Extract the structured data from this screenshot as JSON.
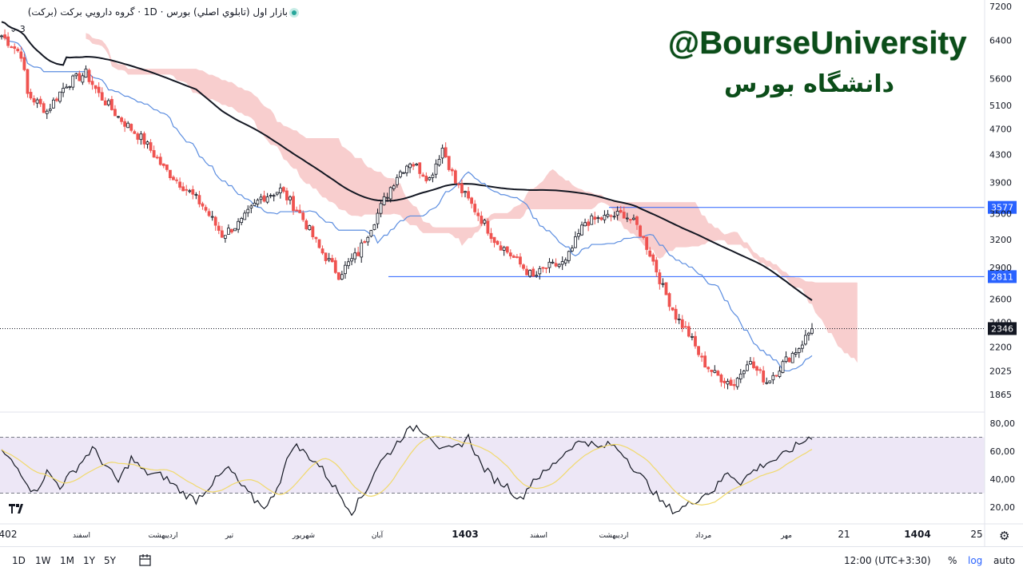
{
  "header": {
    "title": "بازار اول (تابلوي اصلي) بورس · 1D · گروه دارويي بركت (بركت)",
    "legend_toggle": "⌄ 3"
  },
  "watermark": {
    "handle": "@BourseUniversity",
    "persian": "دانشگاه بورس"
  },
  "colors": {
    "candle_up": "#131722",
    "candle_down": "#ef5350",
    "cloud_bear": "#f7c5c6",
    "cloud_bull": "#d9f2ea",
    "kijun": "#5b8de0",
    "ma_long": "#131722",
    "hline": "#2962ff",
    "rsi_line": "#131722",
    "rsi_ma": "#f1d96b",
    "rsi_band": "#ede7f6",
    "accent": "#2962ff"
  },
  "chart_data": [
    {
      "type": "candlestick",
      "title": "",
      "y_scale": "log",
      "ylim": [
        1750,
        7200
      ],
      "price_axis_labels": [
        "7200",
        "6400",
        "5600",
        "5100",
        "4700",
        "4300",
        "3900",
        "3500",
        "3200",
        "2900",
        "2600",
        "2400",
        "2200",
        "2025",
        "1865"
      ],
      "price_axis_values": [
        7200,
        6400,
        5600,
        5100,
        4700,
        4300,
        3900,
        3500,
        3200,
        2900,
        2600,
        2400,
        2200,
        2025,
        1865
      ],
      "time_axis_labels": [
        "402",
        "اسفند",
        "ارديبهشت",
        "تير",
        "شهريور",
        "آبان",
        "1403",
        "اسفند",
        "ارديبهشت",
        "مرداد",
        "مهر",
        "21",
        "1404",
        "25"
      ],
      "close_anchors": [
        [
          0,
          6500
        ],
        [
          6,
          6100
        ],
        [
          8,
          5300
        ],
        [
          14,
          5000
        ],
        [
          20,
          5500
        ],
        [
          26,
          5700
        ],
        [
          30,
          5300
        ],
        [
          36,
          4900
        ],
        [
          44,
          4500
        ],
        [
          50,
          4100
        ],
        [
          56,
          3850
        ],
        [
          62,
          3600
        ],
        [
          68,
          3250
        ],
        [
          74,
          3400
        ],
        [
          80,
          3700
        ],
        [
          86,
          3800
        ],
        [
          92,
          3500
        ],
        [
          98,
          3100
        ],
        [
          104,
          2830
        ],
        [
          110,
          3050
        ],
        [
          116,
          3500
        ],
        [
          122,
          4000
        ],
        [
          126,
          4200
        ],
        [
          132,
          3950
        ],
        [
          136,
          4400
        ],
        [
          140,
          3900
        ],
        [
          146,
          3550
        ],
        [
          152,
          3200
        ],
        [
          158,
          3000
        ],
        [
          164,
          2800
        ],
        [
          168,
          2900
        ],
        [
          174,
          2950
        ],
        [
          180,
          3400
        ],
        [
          186,
          3450
        ],
        [
          192,
          3500
        ],
        [
          196,
          3350
        ],
        [
          200,
          3050
        ],
        [
          204,
          2700
        ],
        [
          208,
          2450
        ],
        [
          212,
          2300
        ],
        [
          216,
          2100
        ],
        [
          220,
          2000
        ],
        [
          226,
          1930
        ],
        [
          230,
          2100
        ],
        [
          236,
          1950
        ],
        [
          240,
          2050
        ],
        [
          246,
          2200
        ],
        [
          250,
          2346
        ]
      ],
      "last_price": "2346",
      "horizontal_levels": [
        {
          "label": "3577",
          "value": 3577
        },
        {
          "label": "2811",
          "value": 2811
        }
      ],
      "last_price_line": 2346
    },
    {
      "type": "line",
      "title": "",
      "ylim": [
        10,
        85
      ],
      "y_axis_labels": [
        "80,00",
        "60,00",
        "40,00",
        "20,00"
      ],
      "y_axis_values": [
        80,
        60,
        40,
        20
      ],
      "band": [
        30,
        70
      ],
      "rsi_anchors": [
        [
          0,
          60
        ],
        [
          6,
          45
        ],
        [
          10,
          30
        ],
        [
          14,
          45
        ],
        [
          18,
          35
        ],
        [
          22,
          45
        ],
        [
          28,
          62
        ],
        [
          32,
          50
        ],
        [
          36,
          38
        ],
        [
          40,
          55
        ],
        [
          44,
          45
        ],
        [
          50,
          42
        ],
        [
          56,
          30
        ],
        [
          60,
          25
        ],
        [
          64,
          35
        ],
        [
          70,
          48
        ],
        [
          74,
          35
        ],
        [
          78,
          25
        ],
        [
          82,
          20
        ],
        [
          86,
          40
        ],
        [
          90,
          65
        ],
        [
          94,
          58
        ],
        [
          98,
          50
        ],
        [
          104,
          30
        ],
        [
          108,
          17
        ],
        [
          112,
          30
        ],
        [
          116,
          50
        ],
        [
          120,
          60
        ],
        [
          124,
          72
        ],
        [
          128,
          78
        ],
        [
          132,
          72
        ],
        [
          136,
          60
        ],
        [
          140,
          62
        ],
        [
          144,
          70
        ],
        [
          148,
          50
        ],
        [
          152,
          40
        ],
        [
          156,
          35
        ],
        [
          160,
          25
        ],
        [
          164,
          40
        ],
        [
          168,
          45
        ],
        [
          172,
          55
        ],
        [
          176,
          64
        ],
        [
          180,
          68
        ],
        [
          184,
          62
        ],
        [
          188,
          65
        ],
        [
          192,
          58
        ],
        [
          196,
          45
        ],
        [
          200,
          35
        ],
        [
          204,
          22
        ],
        [
          208,
          17
        ],
        [
          212,
          22
        ],
        [
          216,
          28
        ],
        [
          220,
          33
        ],
        [
          224,
          45
        ],
        [
          228,
          38
        ],
        [
          232,
          46
        ],
        [
          236,
          52
        ],
        [
          240,
          55
        ],
        [
          244,
          62
        ],
        [
          248,
          68
        ],
        [
          250,
          71
        ]
      ]
    }
  ],
  "toolbar": {
    "timeframes": [
      "1D",
      "1W",
      "1M",
      "1Y",
      "5Y"
    ],
    "time": "12:00 (UTC+3:30)",
    "percent": "%",
    "log": "log",
    "auto": "auto"
  }
}
